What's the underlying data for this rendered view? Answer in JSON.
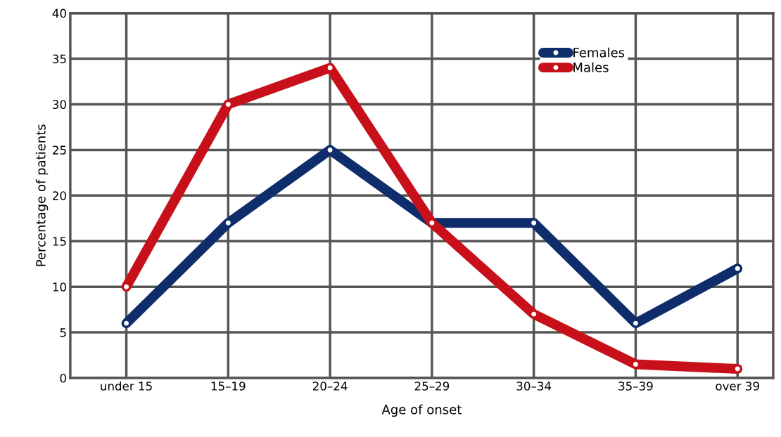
{
  "chart_data": {
    "type": "line",
    "xlabel": "Age of onset",
    "ylabel": "Percentage of patients",
    "categories": [
      "under 15",
      "15–19",
      "20–24",
      "25–29",
      "30–34",
      "35–39",
      "over 39"
    ],
    "series": [
      {
        "name": "Females",
        "color": "#0f2d6b",
        "values": [
          6,
          17,
          25,
          17,
          17,
          6,
          12
        ]
      },
      {
        "name": "Males",
        "color": "#c8101a",
        "values": [
          10,
          30,
          34,
          17,
          7,
          1.5,
          1
        ]
      }
    ],
    "ylim": [
      0,
      40
    ],
    "yticks": [
      0,
      5,
      10,
      15,
      20,
      25,
      30,
      35,
      40
    ],
    "grid": true,
    "legend": "top right",
    "marker": "circle",
    "line_style": "solid"
  }
}
